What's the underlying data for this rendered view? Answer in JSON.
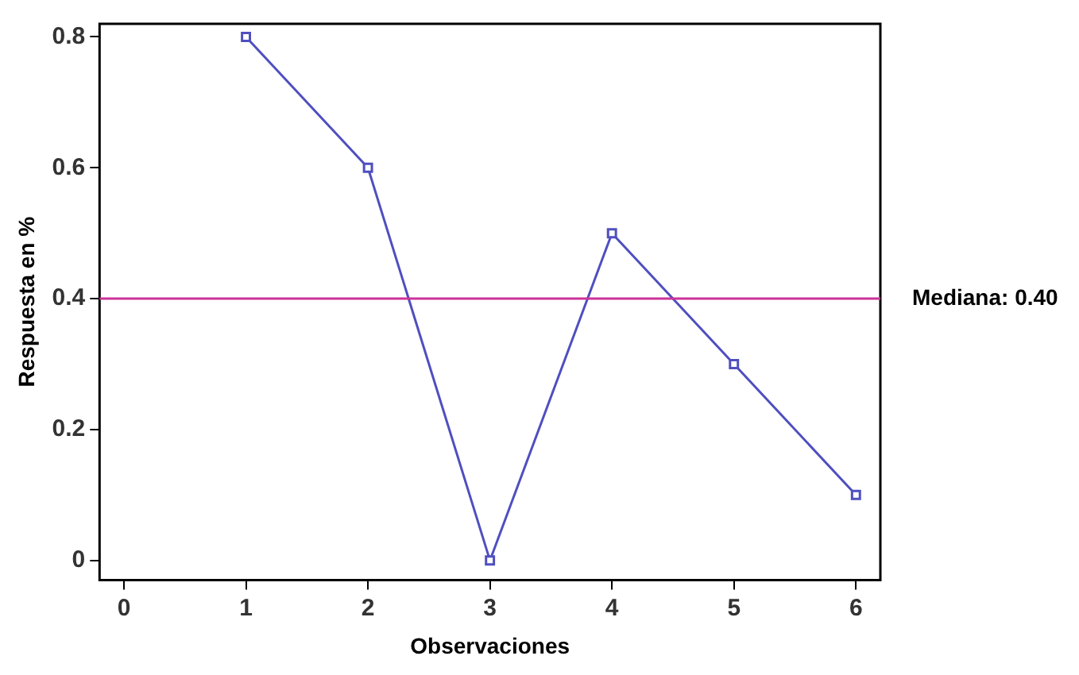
{
  "chart_data": {
    "type": "line",
    "xlabel": "Observaciones",
    "ylabel": "Respuesta en %",
    "x": [
      1,
      2,
      3,
      4,
      5,
      6
    ],
    "series": [
      {
        "color": "#4f4fc0",
        "values": [
          0.8,
          0.6,
          0,
          0.5,
          0.3,
          0.1
        ]
      }
    ],
    "xlim": [
      -0.2,
      6.2
    ],
    "ylim": [
      -0.03,
      0.82
    ],
    "xticks": [
      0,
      1,
      2,
      3,
      4,
      5,
      6
    ],
    "yticks": [
      0,
      0.2,
      0.4,
      0.6,
      0.8
    ],
    "ref_lines": [
      {
        "axis": "y",
        "value": 0.4,
        "label": "Mediana: 0.40",
        "color": "#cc3399"
      }
    ],
    "marker": "square",
    "grid": false,
    "legend": false
  }
}
